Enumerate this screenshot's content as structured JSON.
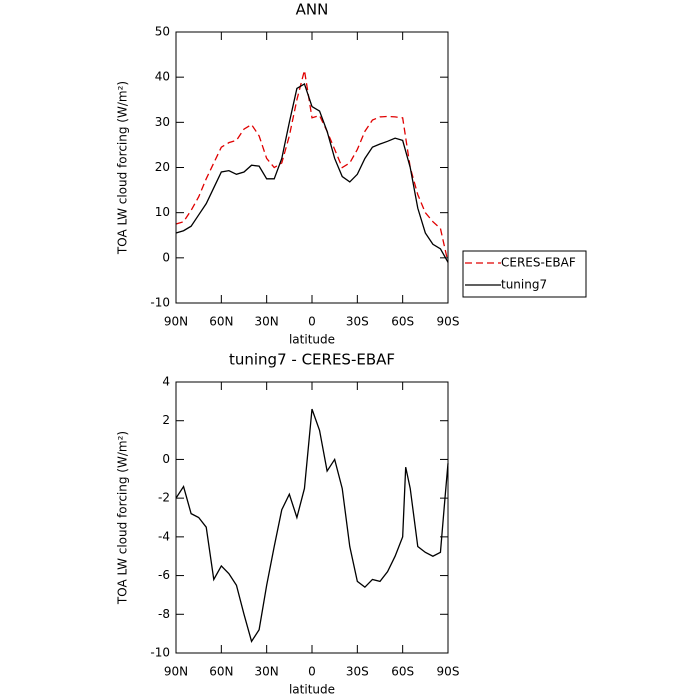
{
  "chart_data": [
    {
      "type": "line",
      "title": "ANN",
      "xlabel": "latitude",
      "ylabel": "TOA LW cloud forcing (W/m²)",
      "x": [
        90,
        85,
        80,
        75,
        70,
        65,
        60,
        55,
        50,
        45,
        40,
        35,
        30,
        25,
        20,
        15,
        10,
        5,
        0,
        -5,
        -10,
        -15,
        -20,
        -25,
        -30,
        -35,
        -40,
        -45,
        -50,
        -55,
        -60,
        -65,
        -70,
        -75,
        -80,
        -85,
        -90
      ],
      "series": [
        {
          "name": "CERES-EBAF",
          "color": "#e00000",
          "dashed": true,
          "values": [
            7.5,
            8,
            10.5,
            13.5,
            17.5,
            21,
            24.5,
            25.5,
            26,
            28.5,
            29.5,
            27,
            22,
            20,
            21,
            27,
            35,
            41.5,
            31,
            31.5,
            28,
            24,
            20,
            21,
            24,
            28,
            30.5,
            31.2,
            31.3,
            31.2,
            31,
            20,
            14,
            10,
            8,
            6.5,
            -1
          ]
        },
        {
          "name": "tuning7",
          "color": "#000000",
          "dashed": false,
          "values": [
            5.5,
            6,
            7,
            9.5,
            12,
            15.5,
            19,
            19.3,
            18.5,
            19,
            20.5,
            20.3,
            17.5,
            17.5,
            22,
            30,
            37.5,
            38.5,
            33.5,
            32.5,
            28,
            22,
            18,
            16.8,
            18.5,
            22,
            24.5,
            25.2,
            25.8,
            26.5,
            26,
            20,
            11,
            5.5,
            3,
            2,
            -1
          ]
        }
      ],
      "xlim": [
        90,
        -90
      ],
      "xticks": [
        {
          "value": 90,
          "label": "90N"
        },
        {
          "value": 60,
          "label": "60N"
        },
        {
          "value": 30,
          "label": "30N"
        },
        0,
        {
          "value": -30,
          "label": "30S"
        },
        {
          "value": -60,
          "label": "60S"
        },
        {
          "value": -90,
          "label": "90S"
        }
      ],
      "ylim": [
        -10,
        50
      ],
      "yticks": [
        -10,
        0,
        10,
        20,
        30,
        40,
        50
      ],
      "legend": "right"
    },
    {
      "type": "line",
      "title": "tuning7 - CERES-EBAF",
      "xlabel": "latitude",
      "ylabel": "TOA LW cloud forcing (W/m²)",
      "x": [
        90,
        85,
        80,
        75,
        70,
        65,
        60,
        55,
        50,
        45,
        40,
        35,
        30,
        25,
        20,
        15,
        10,
        5,
        0,
        -5,
        -10,
        -15,
        -20,
        -25,
        -30,
        -35,
        -40,
        -45,
        -50,
        -55,
        -60,
        -62,
        -65,
        -70,
        -75,
        -80,
        -85,
        -88,
        -90
      ],
      "series": [
        {
          "name": "tuning7",
          "color": "#000000",
          "dashed": false,
          "values": [
            -2,
            -1.4,
            -2.8,
            -3,
            -3.5,
            -6.2,
            -5.5,
            -5.9,
            -6.5,
            -8,
            -9.4,
            -8.8,
            -6.5,
            -4.5,
            -2.6,
            -1.8,
            -3,
            -1.5,
            2.6,
            1.5,
            -0.6,
            0,
            -1.5,
            -4.5,
            -6.3,
            -6.6,
            -6.2,
            -6.3,
            -5.8,
            -5,
            -4,
            -0.4,
            -1.5,
            -4.5,
            -4.8,
            -5,
            -4.8,
            -2,
            -0.2
          ]
        }
      ],
      "xlim": [
        90,
        -90
      ],
      "xticks": [
        {
          "value": 90,
          "label": "90N"
        },
        {
          "value": 60,
          "label": "60N"
        },
        {
          "value": 30,
          "label": "30N"
        },
        0,
        {
          "value": -30,
          "label": "30S"
        },
        {
          "value": -60,
          "label": "60S"
        },
        {
          "value": -90,
          "label": "90S"
        }
      ],
      "ylim": [
        -10,
        4
      ],
      "yticks": [
        -10,
        -8,
        -6,
        -4,
        -2,
        0,
        2,
        4
      ]
    }
  ]
}
